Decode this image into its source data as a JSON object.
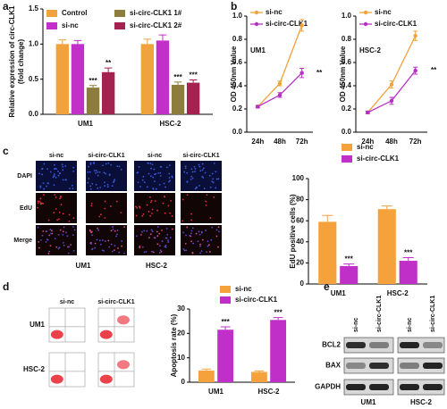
{
  "panel_labels": [
    "a",
    "b",
    "c",
    "d",
    "e"
  ],
  "chart_data": [
    {
      "type": "bar",
      "ylabel": [
        "Relative expression of circ-CLK1",
        "(fold change)"
      ],
      "categories": [
        "UM1",
        "HSC-2"
      ],
      "series": [
        {
          "name": "Control",
          "color": "#f0a23c",
          "values": [
            1.0,
            1.0
          ],
          "errors": [
            0.06,
            0.07
          ]
        },
        {
          "name": "si-nc",
          "color": "#c22fc9",
          "values": [
            1.0,
            1.05
          ],
          "errors": [
            0.05,
            0.08
          ]
        },
        {
          "name": "si-circ-CLK1 1#",
          "color": "#8c7d3c",
          "values": [
            0.38,
            0.42
          ],
          "errors": [
            0.03,
            0.04
          ],
          "significance": [
            "***",
            "***"
          ]
        },
        {
          "name": "si-circ-CLK1 2#",
          "color": "#a3224f",
          "values": [
            0.6,
            0.45
          ],
          "errors": [
            0.06,
            0.04
          ],
          "significance": [
            "**",
            "***"
          ]
        }
      ],
      "ylim": [
        0,
        1.5
      ],
      "yticks": [
        {
          "value": 0,
          "label": "0.0"
        },
        {
          "value": 0.5,
          "label": "0.5"
        },
        {
          "value": 1,
          "label": "1.0"
        },
        {
          "value": 1.5,
          "label": "1.5"
        }
      ]
    },
    {
      "type": "line",
      "title": "UM1",
      "ylabel": "OD 450nm Value",
      "categories": [
        "24h",
        "48h",
        "72h"
      ],
      "series": [
        {
          "name": "si-nc",
          "color": "#f0a23c",
          "values": [
            0.22,
            0.42,
            0.92
          ],
          "errors": [
            0.01,
            0.02,
            0.05
          ]
        },
        {
          "name": "si-circ-CLK1",
          "color": "#b52fc2",
          "values": [
            0.22,
            0.32,
            0.51
          ],
          "errors": [
            0.01,
            0.02,
            0.04
          ],
          "significance": "**"
        }
      ],
      "ylim": [
        0,
        1.0
      ],
      "yticks": [
        {
          "value": 0,
          "label": "0.0"
        },
        0.2,
        0.4,
        0.6,
        0.8,
        {
          "value": 1,
          "label": "1.0"
        }
      ]
    },
    {
      "type": "line",
      "title": "HSC-2",
      "ylabel": "OD 450nm Value",
      "categories": [
        "24h",
        "48h",
        "72h"
      ],
      "series": [
        {
          "name": "si-nc",
          "color": "#f0a23c",
          "values": [
            0.17,
            0.41,
            0.83
          ],
          "errors": [
            0.01,
            0.03,
            0.04
          ]
        },
        {
          "name": "si-circ-CLK1",
          "color": "#b52fc2",
          "values": [
            0.17,
            0.27,
            0.53
          ],
          "errors": [
            0.01,
            0.03,
            0.03
          ],
          "significance": "**"
        }
      ],
      "ylim": [
        0,
        1.0
      ],
      "yticks": [
        {
          "value": 0,
          "label": "0.0"
        },
        0.2,
        0.4,
        0.6,
        0.8,
        {
          "value": 1,
          "label": "1.0"
        }
      ]
    },
    {
      "type": "bar",
      "ylabel": "EdU positive cells (%)",
      "categories": [
        "UM1",
        "HSC-2"
      ],
      "series": [
        {
          "name": "si-nc",
          "color": "#f5a23c",
          "values": [
            59,
            71
          ],
          "errors": [
            6,
            3
          ]
        },
        {
          "name": "si-circ-CLK1",
          "color": "#c12fc9",
          "values": [
            17,
            22
          ],
          "errors": [
            2,
            3
          ],
          "significance": [
            "***",
            "***"
          ]
        }
      ],
      "ylim": [
        0,
        100
      ],
      "yticks": [
        0,
        20,
        40,
        60,
        80,
        100
      ]
    },
    {
      "type": "bar",
      "ylabel": "Apoptosis rate (%)",
      "categories": [
        "UM1",
        "HSC-2"
      ],
      "series": [
        {
          "name": "si-nc",
          "color": "#f5a23c",
          "values": [
            4.8,
            4.2
          ],
          "errors": [
            0.6,
            0.4
          ]
        },
        {
          "name": "si-circ-CLK1",
          "color": "#c12fc9",
          "values": [
            21.5,
            25.5
          ],
          "errors": [
            1.2,
            1.0
          ],
          "significance": [
            "***",
            "***"
          ]
        }
      ],
      "ylim": [
        0,
        30
      ],
      "yticks": [
        0,
        10,
        20,
        30
      ]
    }
  ],
  "edu_panel": {
    "columns": [
      "si-nc",
      "si-circ-CLK1",
      "si-nc",
      "si-circ-CLK1"
    ],
    "rows": [
      "DAPI",
      "EdU",
      "Merge"
    ],
    "groups": [
      "UM1",
      "HSC-2"
    ]
  },
  "flow_panel": {
    "columns": [
      "si-nc",
      "si-circ-CLK1"
    ],
    "rows": [
      "UM1",
      "HSC-2"
    ]
  },
  "blot_panel": {
    "columns": [
      "si-nc",
      "si-circ-CLK1",
      "si-nc",
      "si-circ-CLK1"
    ],
    "rows": [
      "BCL2",
      "BAX",
      "GAPDH"
    ],
    "groups": [
      "UM1",
      "HSC-2"
    ]
  }
}
